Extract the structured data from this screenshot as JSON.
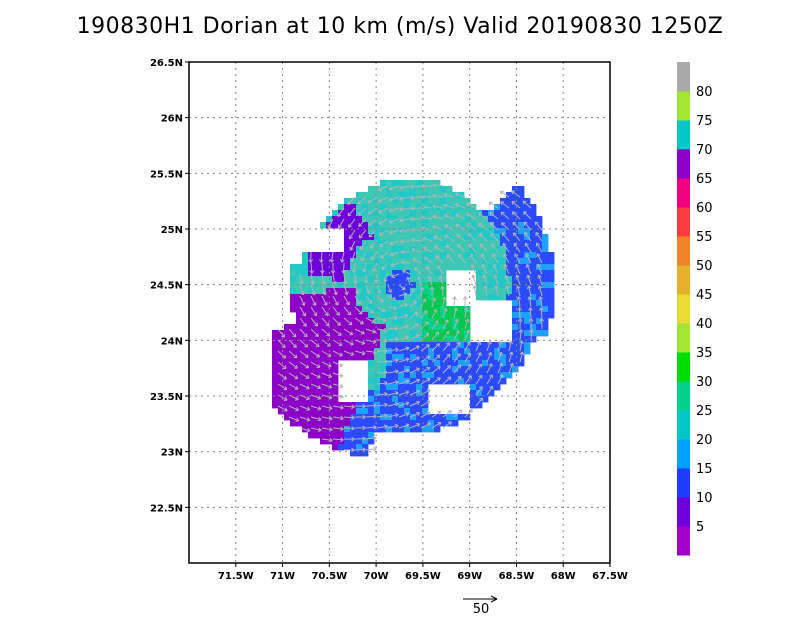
{
  "title": "190830H1 Dorian at 10 km (m/s) Valid 20190830  1250Z",
  "chart_data": {
    "type": "heatmap",
    "title": "190830H1 Dorian at 10 km (m/s) Valid 20190830  1250Z",
    "x_ticks": [
      "71.5W",
      "71W",
      "70.5W",
      "70W",
      "69.5W",
      "69W",
      "68.5W",
      "68W",
      "67.5W"
    ],
    "x_values": [
      -71.5,
      -71,
      -70.5,
      -70,
      -69.5,
      -69,
      -68.5,
      -68,
      -67.5
    ],
    "y_ticks": [
      "22.5N",
      "23N",
      "23.5N",
      "24N",
      "24.5N",
      "25N",
      "25.5N",
      "26N",
      "26.5N"
    ],
    "y_values": [
      22.5,
      23,
      23.5,
      24,
      24.5,
      25,
      25.5,
      26,
      26.5
    ],
    "xlim": [
      -72,
      -67.5
    ],
    "ylim": [
      22,
      26.5
    ],
    "grid": true,
    "center_lon": -69.75,
    "center_lat": 24.5,
    "colorbar": {
      "labels": [
        "5",
        "10",
        "15",
        "20",
        "25",
        "30",
        "35",
        "40",
        "45",
        "50",
        "55",
        "60",
        "65",
        "70",
        "75",
        "80"
      ],
      "colors": [
        "#a000c8",
        "#6e00dc",
        "#1e3cff",
        "#00a0ff",
        "#00c8c8",
        "#00d28c",
        "#00dc00",
        "#a0e632",
        "#e6dc32",
        "#e6af2d",
        "#f08228",
        "#fa3c3c",
        "#f00082",
        "#8c00c8",
        "#00c8c8",
        "#a0e632",
        "#a9a9a9"
      ]
    },
    "reference_vector": {
      "value": "50",
      "label": "50"
    }
  }
}
